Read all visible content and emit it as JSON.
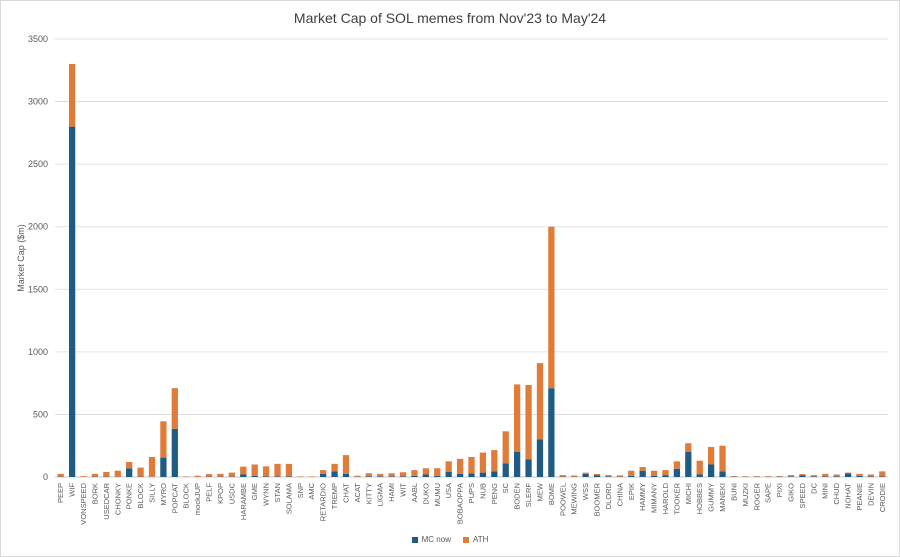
{
  "chart_data": {
    "type": "bar",
    "stacked": true,
    "title": "Market Cap of SOL memes from Nov'23 to May'24",
    "xlabel": "",
    "ylabel": "Market Cap ($m)",
    "ylim": [
      0,
      3500
    ],
    "yticks": [
      0,
      500,
      1000,
      1500,
      2000,
      2500,
      3000,
      3500
    ],
    "grid": true,
    "legend_position": "bottom",
    "categories": [
      "PEEP",
      "WIF",
      "VONSPEED",
      "BORK",
      "USEDCAR",
      "CHONKY",
      "PONKE",
      "BLOCK",
      "SILLY",
      "MYRO",
      "POPCAT",
      "BLOCK",
      "mockJUP",
      "PELF",
      "KPOP",
      "USDC",
      "HARAMBE",
      "GME",
      "WYNN",
      "STAN",
      "SOLAMA",
      "SNP",
      "AMC",
      "RETARDIO",
      "TREMP",
      "CHAT",
      "ACAT",
      "KITTY",
      "LIGMA",
      "HAMI",
      "WIT",
      "AABL",
      "DUKO",
      "MUMU",
      "USA",
      "BOBAOPPA",
      "PUPS",
      "NUB",
      "PENG",
      "SC",
      "BODEN",
      "SLERF",
      "MEW",
      "BOME",
      "POOWEL",
      "MEWING",
      "WSS",
      "BOOMER",
      "DLORD",
      "CHINA",
      "EPIK",
      "HAMMY",
      "MIMANY",
      "HAROLD",
      "TOOKER",
      "MICHI",
      "HOBBES",
      "GUMMY",
      "MANEKI",
      "BUNI",
      "MUZKI",
      "ROGER",
      "SAPE",
      "PIXI",
      "GIKO",
      "SPEED",
      "DC",
      "MINI",
      "CHUD",
      "NOHAT",
      "PEANIE",
      "DEVIN",
      "CRODIE"
    ],
    "series": [
      {
        "name": "MC now",
        "color": "#1f5c85",
        "values": [
          3,
          2800,
          1,
          3,
          3,
          2,
          70,
          3,
          2,
          155,
          385,
          1,
          0,
          3,
          3,
          3,
          20,
          10,
          5,
          5,
          5,
          1,
          1,
          25,
          45,
          25,
          2,
          5,
          5,
          5,
          5,
          10,
          20,
          10,
          40,
          25,
          30,
          35,
          45,
          110,
          200,
          140,
          300,
          710,
          3,
          2,
          25,
          15,
          5,
          3,
          10,
          50,
          10,
          15,
          65,
          200,
          20,
          100,
          45,
          3,
          2,
          2,
          2,
          3,
          5,
          15,
          5,
          5,
          5,
          30,
          10,
          5,
          5
        ]
      },
      {
        "name": "ATH",
        "color": "#e07b39",
        "values": [
          22,
          500,
          6,
          22,
          37,
          48,
          50,
          72,
          158,
          290,
          325,
          4,
          10,
          20,
          22,
          32,
          63,
          90,
          80,
          100,
          100,
          4,
          4,
          30,
          60,
          150,
          8,
          25,
          20,
          25,
          33,
          45,
          50,
          60,
          85,
          120,
          130,
          160,
          170,
          255,
          540,
          595,
          610,
          1290,
          12,
          10,
          10,
          10,
          10,
          10,
          40,
          30,
          40,
          40,
          60,
          70,
          110,
          140,
          205,
          4,
          4,
          5,
          5,
          4,
          10,
          8,
          10,
          20,
          15,
          5,
          15,
          15,
          40
        ]
      }
    ]
  }
}
